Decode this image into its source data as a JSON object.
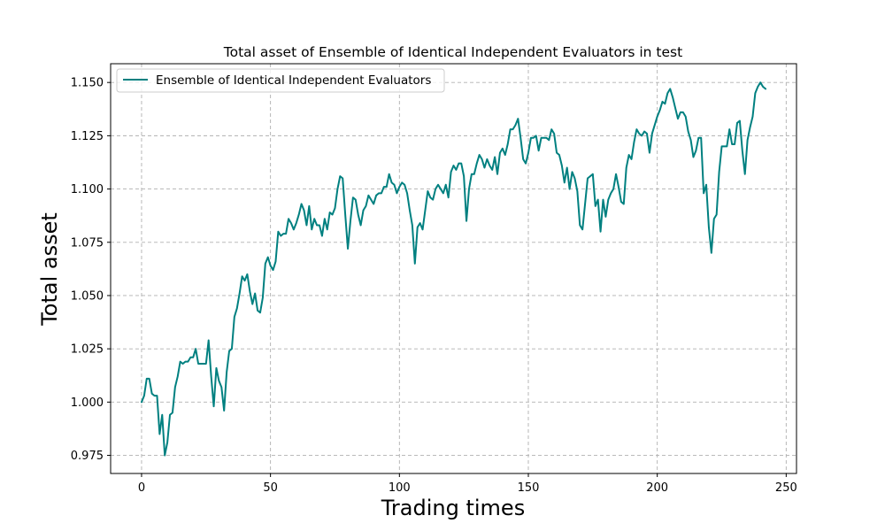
{
  "chart_data": {
    "type": "line",
    "title": "Total asset of Ensemble of Identical Independent Evaluators in test",
    "xlabel": "Trading times",
    "ylabel": "Total asset",
    "xlim": [
      -12,
      254
    ],
    "ylim": [
      0.9665,
      1.1588
    ],
    "xticks": [
      0,
      50,
      100,
      150,
      200,
      250
    ],
    "xtick_labels": [
      "0",
      "50",
      "100",
      "150",
      "200",
      "250"
    ],
    "yticks": [
      0.975,
      1.0,
      1.025,
      1.05,
      1.075,
      1.1,
      1.125,
      1.15
    ],
    "ytick_labels": [
      "0.975",
      "1.000",
      "1.025",
      "1.050",
      "1.075",
      "1.100",
      "1.125",
      "1.150"
    ],
    "grid": true,
    "legend_position": "top-left",
    "series": [
      {
        "name": "Ensemble of Identical Independent Evaluators",
        "color": "#008080",
        "x_start": 0,
        "x_step": 1,
        "values": [
          1.0,
          1.003,
          1.011,
          1.011,
          1.004,
          1.003,
          1.003,
          0.985,
          0.994,
          0.975,
          0.981,
          0.994,
          0.995,
          1.007,
          1.012,
          1.019,
          1.018,
          1.019,
          1.019,
          1.021,
          1.021,
          1.025,
          1.018,
          1.018,
          1.018,
          1.018,
          1.029,
          1.012,
          0.998,
          1.016,
          1.01,
          1.007,
          0.996,
          1.014,
          1.024,
          1.025,
          1.04,
          1.044,
          1.051,
          1.059,
          1.057,
          1.06,
          1.052,
          1.046,
          1.051,
          1.043,
          1.042,
          1.049,
          1.065,
          1.068,
          1.064,
          1.062,
          1.066,
          1.08,
          1.078,
          1.079,
          1.079,
          1.086,
          1.084,
          1.081,
          1.084,
          1.088,
          1.093,
          1.09,
          1.083,
          1.092,
          1.081,
          1.086,
          1.083,
          1.083,
          1.078,
          1.086,
          1.081,
          1.089,
          1.088,
          1.091,
          1.1,
          1.106,
          1.105,
          1.088,
          1.072,
          1.085,
          1.096,
          1.095,
          1.088,
          1.083,
          1.09,
          1.092,
          1.097,
          1.095,
          1.093,
          1.097,
          1.098,
          1.098,
          1.101,
          1.101,
          1.107,
          1.103,
          1.102,
          1.098,
          1.101,
          1.103,
          1.102,
          1.098,
          1.09,
          1.083,
          1.065,
          1.082,
          1.084,
          1.081,
          1.09,
          1.099,
          1.096,
          1.095,
          1.1,
          1.102,
          1.1,
          1.098,
          1.102,
          1.096,
          1.108,
          1.111,
          1.109,
          1.112,
          1.112,
          1.106,
          1.085,
          1.1,
          1.107,
          1.107,
          1.112,
          1.116,
          1.114,
          1.11,
          1.114,
          1.111,
          1.109,
          1.115,
          1.107,
          1.117,
          1.119,
          1.116,
          1.121,
          1.128,
          1.128,
          1.13,
          1.133,
          1.124,
          1.114,
          1.112,
          1.117,
          1.124,
          1.124,
          1.125,
          1.118,
          1.124,
          1.124,
          1.124,
          1.123,
          1.128,
          1.126,
          1.117,
          1.116,
          1.111,
          1.103,
          1.11,
          1.1,
          1.108,
          1.105,
          1.099,
          1.083,
          1.081,
          1.093,
          1.105,
          1.106,
          1.107,
          1.092,
          1.095,
          1.08,
          1.095,
          1.087,
          1.095,
          1.098,
          1.1,
          1.107,
          1.101,
          1.094,
          1.093,
          1.11,
          1.116,
          1.114,
          1.122,
          1.128,
          1.126,
          1.125,
          1.127,
          1.126,
          1.117,
          1.126,
          1.13,
          1.134,
          1.137,
          1.141,
          1.14,
          1.145,
          1.147,
          1.143,
          1.138,
          1.133,
          1.136,
          1.136,
          1.134,
          1.127,
          1.123,
          1.115,
          1.118,
          1.124,
          1.124,
          1.098,
          1.102,
          1.082,
          1.07,
          1.086,
          1.088,
          1.108,
          1.12,
          1.12,
          1.12,
          1.128,
          1.121,
          1.121,
          1.131,
          1.132,
          1.118,
          1.107,
          1.123,
          1.129,
          1.134,
          1.145,
          1.148,
          1.15,
          1.148,
          1.147
        ]
      }
    ]
  }
}
